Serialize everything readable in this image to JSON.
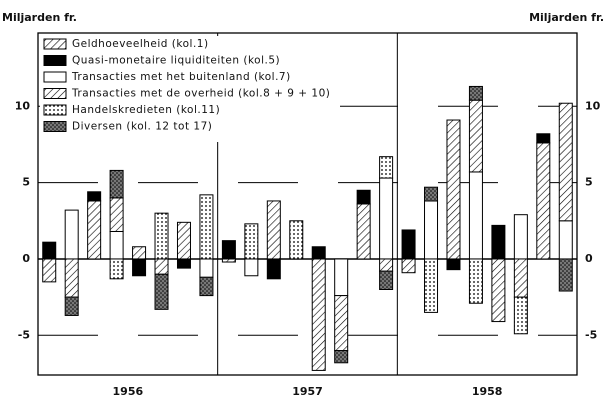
{
  "chart_data": {
    "type": "bar",
    "stacked": true,
    "y_label_left": "Miljarden fr.",
    "y_label_right": "Miljarden fr.",
    "group_labels": [
      "1956",
      "1957",
      "1958"
    ],
    "categories": [
      null,
      null,
      null,
      null,
      null,
      null,
      null,
      null,
      null,
      null,
      null,
      null,
      null,
      null,
      null,
      null,
      null,
      null,
      null,
      null,
      null,
      null,
      null,
      null
    ],
    "series": [
      {
        "name": "Geldhoeveelheid (kol.1)",
        "color": "#000",
        "pattern": "hatch",
        "values": [
          -1.5,
          null,
          3.8,
          null,
          0.8,
          null,
          2.4,
          null,
          -0.2,
          null,
          3.8,
          null,
          -7.3,
          null,
          3.6,
          null,
          -0.9,
          null,
          9.1,
          null,
          -4.1,
          null,
          7.6,
          null
        ]
      },
      {
        "name": "Quasi-monetaire liquiditeiten (kol.5)",
        "color": "#000",
        "pattern": "solid",
        "values": [
          1.1,
          null,
          0.6,
          null,
          -1.1,
          null,
          -0.6,
          null,
          1.2,
          null,
          -1.3,
          null,
          0.8,
          null,
          0.9,
          null,
          1.9,
          null,
          -0.7,
          null,
          2.2,
          null,
          0.6,
          null
        ]
      },
      {
        "name": "Transacties met het buitenland (kol.7)",
        "color": "#000",
        "pattern": "none",
        "values": [
          null,
          3.2,
          null,
          1.8,
          null,
          null,
          null,
          -1.2,
          null,
          -1.1,
          null,
          null,
          null,
          -2.4,
          null,
          5.3,
          null,
          3.8,
          null,
          5.7,
          null,
          2.9,
          null,
          2.5
        ]
      },
      {
        "name": "Transacties met de overheid (kol.8 + 9 + 10)",
        "color": "#000",
        "pattern": "hatch",
        "values": [
          null,
          -2.5,
          null,
          2.2,
          null,
          -1.0,
          null,
          null,
          null,
          null,
          null,
          null,
          null,
          -3.6,
          null,
          -0.8,
          null,
          null,
          null,
          4.7,
          null,
          -2.5,
          null,
          7.7
        ]
      },
      {
        "name": "Handelskredieten (kol.11)",
        "color": "#000",
        "pattern": "dots",
        "values": [
          null,
          null,
          null,
          -1.3,
          null,
          3.0,
          null,
          4.2,
          null,
          2.3,
          null,
          2.5,
          null,
          null,
          null,
          1.4,
          null,
          -3.5,
          null,
          -2.9,
          null,
          -2.4,
          null,
          null
        ]
      },
      {
        "name": "Diversen (kol. 12 tot 17)",
        "color": "#000",
        "pattern": "cross",
        "values": [
          null,
          -1.2,
          null,
          1.8,
          null,
          -2.3,
          null,
          -1.2,
          null,
          null,
          null,
          null,
          null,
          -0.8,
          null,
          -1.2,
          null,
          0.9,
          null,
          0.9,
          null,
          null,
          null,
          -2.1
        ]
      }
    ],
    "ylim": [
      -7.6,
      14.8
    ],
    "yticks": [
      -5,
      0,
      5,
      10
    ],
    "grid": true
  }
}
